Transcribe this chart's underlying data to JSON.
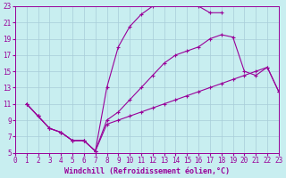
{
  "background_color": "#c8eef0",
  "grid_color": "#a8ccd8",
  "line_color": "#990099",
  "curve1_x": [
    1,
    2,
    3,
    4,
    5,
    6,
    7,
    8,
    9,
    10,
    11,
    12,
    13,
    14,
    15,
    16,
    17,
    18
  ],
  "curve1_y": [
    11,
    9.5,
    8,
    7.5,
    6.5,
    6.5,
    5.2,
    13,
    18,
    20.5,
    22,
    23,
    23.5,
    23.5,
    23.5,
    23,
    22.2,
    22.2
  ],
  "curve2_x": [
    1,
    2,
    3,
    4,
    5,
    6,
    7,
    8,
    9,
    10,
    11,
    12,
    13,
    14,
    15,
    16,
    17,
    18,
    19,
    20,
    21,
    22,
    23
  ],
  "curve2_y": [
    11,
    9.5,
    8,
    7.5,
    6.5,
    6.5,
    5.2,
    9,
    10,
    11.5,
    13,
    14.5,
    16,
    17,
    17.5,
    18,
    19,
    19.5,
    19.2,
    15,
    14.5,
    15.5,
    12.5
  ],
  "curve3_x": [
    1,
    2,
    3,
    4,
    5,
    6,
    7,
    8,
    9,
    10,
    11,
    12,
    13,
    14,
    15,
    16,
    17,
    18,
    19,
    20,
    21,
    22,
    23
  ],
  "curve3_y": [
    11,
    9.5,
    8,
    7.5,
    6.5,
    6.5,
    5.2,
    8.5,
    9,
    9.5,
    10,
    10.5,
    11,
    11.5,
    12,
    12.5,
    13,
    13.5,
    14,
    14.5,
    15,
    15.5,
    12.5
  ],
  "xlabel": "Windchill (Refroidissement éolien,°C)",
  "xlim": [
    0,
    23
  ],
  "ylim": [
    5,
    23
  ],
  "xticks": [
    0,
    1,
    2,
    3,
    4,
    5,
    6,
    7,
    8,
    9,
    10,
    11,
    12,
    13,
    14,
    15,
    16,
    17,
    18,
    19,
    20,
    21,
    22,
    23
  ],
  "yticks": [
    5,
    7,
    9,
    11,
    13,
    15,
    17,
    19,
    21,
    23
  ],
  "tick_fontsize": 5.5,
  "xlabel_fontsize": 6.0
}
